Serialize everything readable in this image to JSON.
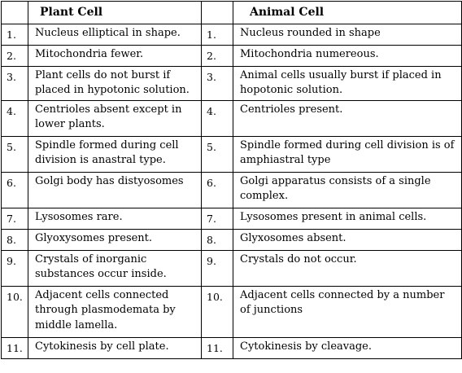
{
  "table": {
    "headers": {
      "no_plant": "",
      "plant": "Plant Cell",
      "no_animal": "",
      "animal": "Animal Cell"
    },
    "rows": [
      {
        "no_plant": "1.",
        "plant": "Nucleus elliptical in shape.",
        "no_animal": "1.",
        "animal": "Nucleus rounded in shape"
      },
      {
        "no_plant": "2.",
        "plant": "Mitochondria fewer.",
        "no_animal": "2.",
        "animal": "Mitochondria numereous."
      },
      {
        "no_plant": "3.",
        "plant": "Plant cells do not burst if placed in hypotonic solution.",
        "no_animal": "3.",
        "animal": "Animal cells usually burst if placed in hopotonic solution."
      },
      {
        "no_plant": "4.",
        "plant": "Centrioles absent except in lower plants.",
        "no_animal": "4.",
        "animal": "Centrioles present."
      },
      {
        "no_plant": "5.",
        "plant": "Spindle formed during cell division is anastral type.",
        "no_animal": "5.",
        "animal": "Spindle formed during cell division is of amphiastral type"
      },
      {
        "no_plant": "6.",
        "plant": "Golgi body has distyosomes",
        "no_animal": "6.",
        "animal": "Golgi apparatus consists of a single complex."
      },
      {
        "no_plant": "7.",
        "plant": "Lysosomes rare.",
        "no_animal": "7.",
        "animal": "Lysosomes present in animal cells."
      },
      {
        "no_plant": "8.",
        "plant": "Glyoxysomes present.",
        "no_animal": "8.",
        "animal": "Glyxosomes absent."
      },
      {
        "no_plant": "9.",
        "plant": "Crystals of inorganic substances occur inside.",
        "no_animal": "9.",
        "animal": "Crystals do not occur."
      },
      {
        "no_plant": "10.",
        "plant": "Adjacent cells connected through plasmodemata by middle lamella.",
        "no_animal": "10.",
        "animal": "Adjacent cells connected by a number of junctions"
      },
      {
        "no_plant": "11.",
        "plant": "Cytokinesis by cell plate.",
        "no_animal": "11.",
        "animal": "Cytokinesis by cleavage."
      }
    ]
  }
}
